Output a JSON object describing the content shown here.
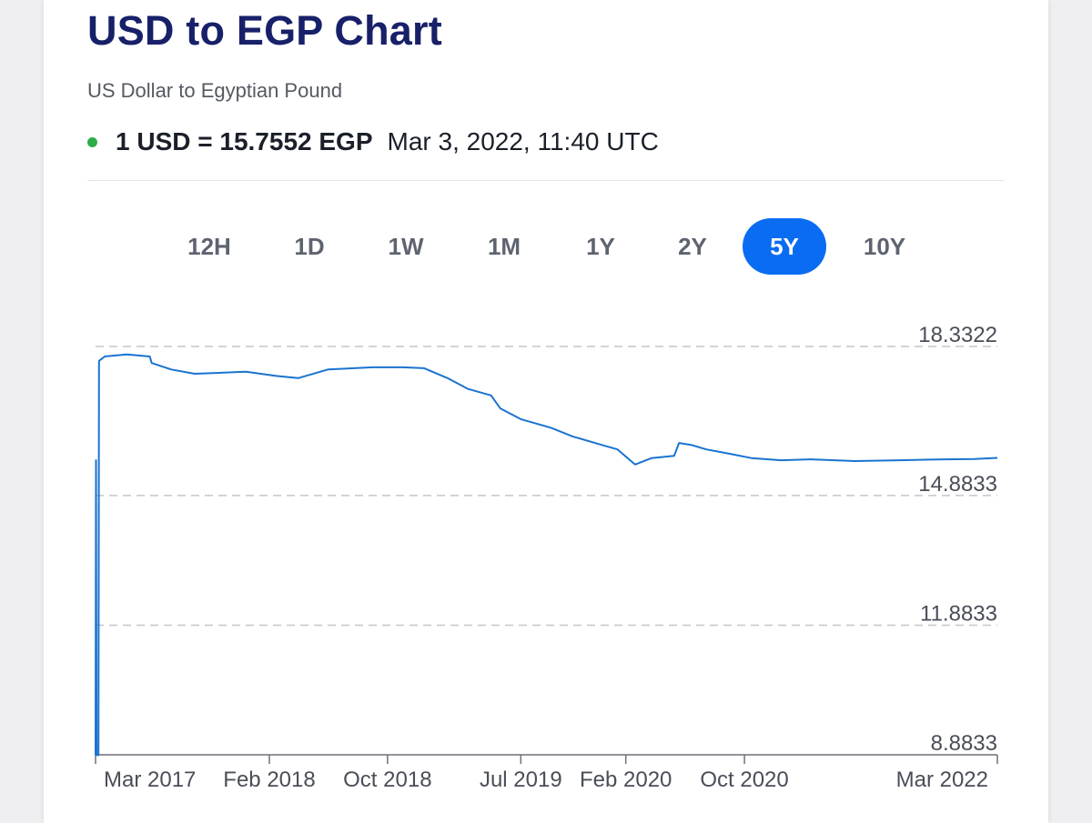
{
  "header": {
    "title": "USD to EGP Chart",
    "subtitle": "US Dollar to Egyptian Pound",
    "rate": "1 USD = 15.7552 EGP",
    "timestamp": "Mar 3, 2022, 11:40 UTC",
    "status_color": "#2eab47"
  },
  "timeframes": {
    "items": [
      "12H",
      "1D",
      "1W",
      "1M",
      "1Y",
      "2Y",
      "5Y",
      "10Y"
    ],
    "active": "5Y",
    "active_color": "#0a6cf2"
  },
  "chart_data": {
    "type": "line",
    "title": "",
    "xlabel": "",
    "ylabel": "",
    "line_color": "#1a73d0",
    "y_ticks": [
      "18.3322",
      "14.8833",
      "11.8833",
      "8.8833"
    ],
    "y_tick_values": [
      18.3322,
      14.8833,
      11.8833,
      8.8833
    ],
    "ylim": [
      8.8833,
      18.3322
    ],
    "xlim": [
      "2017-02-10",
      "2022-03-03"
    ],
    "x_ticks": [
      {
        "label": "Mar 2017",
        "date": "2017-03-01"
      },
      {
        "label": "Feb 2018",
        "date": "2018-02-01"
      },
      {
        "label": "Oct 2018",
        "date": "2018-10-01"
      },
      {
        "label": "Jul 2019",
        "date": "2019-07-01"
      },
      {
        "label": "Feb 2020",
        "date": "2020-02-01"
      },
      {
        "label": "Oct 2020",
        "date": "2020-10-01"
      },
      {
        "label": "Mar 2022",
        "date": "2022-03-01"
      }
    ],
    "grid": "horizontal-dashed",
    "series": [
      {
        "name": "",
        "points": [
          [
            "2017-02-10",
            8.88
          ],
          [
            "2017-02-11",
            15.7
          ],
          [
            "2017-02-12",
            8.88
          ],
          [
            "2017-02-16",
            8.88
          ],
          [
            "2017-02-17",
            18.0
          ],
          [
            "2017-03-01",
            18.1
          ],
          [
            "2017-04-15",
            18.15
          ],
          [
            "2017-06-01",
            18.1
          ],
          [
            "2017-06-05",
            17.95
          ],
          [
            "2017-07-15",
            17.8
          ],
          [
            "2017-09-01",
            17.7
          ],
          [
            "2017-10-15",
            17.72
          ],
          [
            "2017-12-15",
            17.75
          ],
          [
            "2018-02-15",
            17.65
          ],
          [
            "2018-04-01",
            17.6
          ],
          [
            "2018-06-01",
            17.8
          ],
          [
            "2018-09-01",
            17.85
          ],
          [
            "2018-11-01",
            17.85
          ],
          [
            "2018-12-15",
            17.83
          ],
          [
            "2019-02-01",
            17.6
          ],
          [
            "2019-03-15",
            17.35
          ],
          [
            "2019-05-01",
            17.2
          ],
          [
            "2019-05-20",
            16.9
          ],
          [
            "2019-07-01",
            16.65
          ],
          [
            "2019-09-01",
            16.45
          ],
          [
            "2019-10-15",
            16.25
          ],
          [
            "2019-12-15",
            16.05
          ],
          [
            "2020-01-15",
            15.95
          ],
          [
            "2020-02-20",
            15.6
          ],
          [
            "2020-03-25",
            15.75
          ],
          [
            "2020-05-10",
            15.8
          ],
          [
            "2020-05-20",
            16.1
          ],
          [
            "2020-06-15",
            16.05
          ],
          [
            "2020-07-15",
            15.95
          ],
          [
            "2020-09-01",
            15.85
          ],
          [
            "2020-10-15",
            15.75
          ],
          [
            "2020-12-15",
            15.7
          ],
          [
            "2021-02-15",
            15.72
          ],
          [
            "2021-05-15",
            15.68
          ],
          [
            "2021-08-15",
            15.7
          ],
          [
            "2021-11-15",
            15.72
          ],
          [
            "2022-01-15",
            15.73
          ],
          [
            "2022-03-03",
            15.7552
          ]
        ]
      }
    ]
  }
}
